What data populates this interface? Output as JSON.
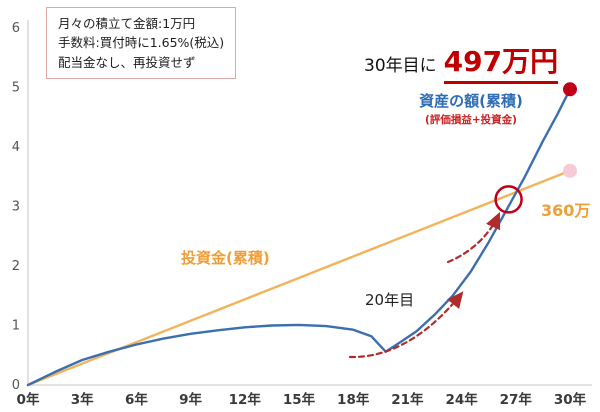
{
  "info_box": {
    "lines": [
      "月々の積立て金額:1万円",
      "手数料:買付時に1.65%(税込)",
      "配当金なし、再投資せず"
    ]
  },
  "annotations": {
    "milestone_prefix": "30年目に",
    "milestone_value": "497万円",
    "asset_label": "資産の額(累積)",
    "asset_sublabel": "(評価損益+投資金)",
    "investment_total_label": "360万",
    "investment_label": "投資金(累積)",
    "dip_label": "20年目"
  },
  "chart_data": {
    "type": "line",
    "title": "",
    "xlabel": "",
    "ylabel": "",
    "grid": false,
    "legend": "inline-labels",
    "xlim": [
      0,
      30
    ],
    "ylim": [
      0,
      6
    ],
    "x_tick_labels": [
      "0年",
      "3年",
      "6年",
      "9年",
      "12年",
      "15年",
      "18年",
      "21年",
      "24年",
      "27年",
      "30年"
    ],
    "y_tick_labels": [
      "0",
      "1",
      "2",
      "3",
      "4",
      "5",
      "6"
    ],
    "unit_note": "values in 百万円 (4.97 = 497万円, 3.6 = 360万円)",
    "series": [
      {
        "name": "投資金(累積)",
        "color": "#f2b35c",
        "end_dot_color": "#f6cbd5",
        "x": [
          0,
          30
        ],
        "values": [
          0,
          3.6
        ]
      },
      {
        "name": "資産の額(累積)",
        "color": "#3b6fae",
        "end_dot_color": "#c00018",
        "x": [
          0,
          1.5,
          3,
          4.5,
          6,
          7.5,
          9,
          10.5,
          12,
          13.5,
          15,
          16.5,
          18,
          19,
          19.8,
          20.6,
          21.5,
          22.5,
          23.5,
          24.5,
          25.5,
          26.5,
          27.5,
          28.5,
          29.3,
          30
        ],
        "values": [
          0,
          0.22,
          0.42,
          0.56,
          0.68,
          0.78,
          0.86,
          0.92,
          0.97,
          1.0,
          1.01,
          0.99,
          0.93,
          0.82,
          0.56,
          0.72,
          0.9,
          1.18,
          1.5,
          1.9,
          2.4,
          2.95,
          3.5,
          4.1,
          4.55,
          4.97
        ]
      }
    ],
    "crossover_highlight": {
      "x": 26.6,
      "y": 3.12
    },
    "final_values": {
      "asset": 4.97,
      "investment": 3.6
    }
  }
}
